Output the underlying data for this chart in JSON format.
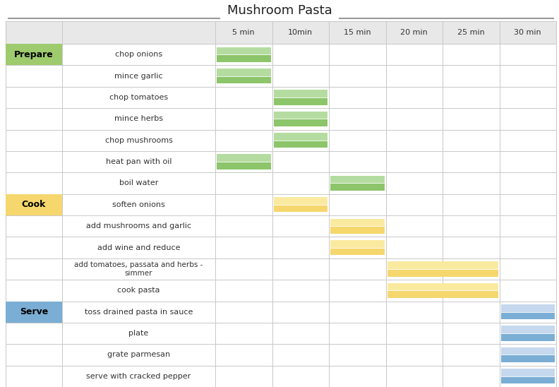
{
  "title": "Mushroom Pasta",
  "col_labels": [
    "5 min",
    "10min",
    "15 min",
    "20 min",
    "25 min",
    "30 min"
  ],
  "time_max": 30,
  "time_step": 5,
  "categories": [
    {
      "label": "Prepare",
      "row": 0,
      "bg": "#9ecb6e",
      "text_color": "#000000"
    },
    {
      "label": "Cook",
      "row": 7,
      "bg": "#f5d76e",
      "text_color": "#000000"
    },
    {
      "label": "Serve",
      "row": 12,
      "bg": "#7baed4",
      "text_color": "#000000"
    }
  ],
  "tasks": [
    {
      "name": "chop onions",
      "row": 0,
      "start": 0,
      "end": 5,
      "color_key": "green"
    },
    {
      "name": "mince garlic",
      "row": 1,
      "start": 0,
      "end": 5,
      "color_key": "green"
    },
    {
      "name": "chop tomatoes",
      "row": 2,
      "start": 5,
      "end": 10,
      "color_key": "green"
    },
    {
      "name": "mince herbs",
      "row": 3,
      "start": 5,
      "end": 10,
      "color_key": "green"
    },
    {
      "name": "chop mushrooms",
      "row": 4,
      "start": 5,
      "end": 10,
      "color_key": "green"
    },
    {
      "name": "heat pan with oil",
      "row": 5,
      "start": 0,
      "end": 5,
      "color_key": "green"
    },
    {
      "name": "boil water",
      "row": 6,
      "start": 10,
      "end": 15,
      "color_key": "green"
    },
    {
      "name": "soften onions",
      "row": 7,
      "start": 5,
      "end": 10,
      "color_key": "yellow"
    },
    {
      "name": "add mushrooms and garlic",
      "row": 8,
      "start": 10,
      "end": 15,
      "color_key": "yellow"
    },
    {
      "name": "add wine and reduce",
      "row": 9,
      "start": 10,
      "end": 15,
      "color_key": "yellow"
    },
    {
      "name": "add tomatoes, passata and herbs -\nsimmer",
      "row": 10,
      "start": 15,
      "end": 25,
      "color_key": "yellow"
    },
    {
      "name": "cook pasta",
      "row": 11,
      "start": 15,
      "end": 25,
      "color_key": "yellow"
    },
    {
      "name": "toss drained pasta in sauce",
      "row": 12,
      "start": 25,
      "end": 30,
      "color_key": "blue"
    },
    {
      "name": "plate",
      "row": 13,
      "start": 25,
      "end": 30,
      "color_key": "blue"
    },
    {
      "name": "grate parmesan",
      "row": 14,
      "start": 25,
      "end": 30,
      "color_key": "blue"
    },
    {
      "name": "serve with cracked pepper",
      "row": 15,
      "start": 25,
      "end": 30,
      "color_key": "blue"
    }
  ],
  "bar_colors": {
    "green": [
      "#b5dca0",
      "#8cc56a"
    ],
    "yellow": [
      "#faeaa0",
      "#f5d76e"
    ],
    "blue": [
      "#c5d8ed",
      "#7baed4"
    ]
  },
  "n_rows": 16,
  "header_bg": "#e8e8e8",
  "grid_color": "#c8c8c8",
  "bg_color": "#ffffff",
  "title_fontsize": 13,
  "header_fontsize": 8,
  "task_fontsize": 8,
  "cat_fontsize": 9
}
